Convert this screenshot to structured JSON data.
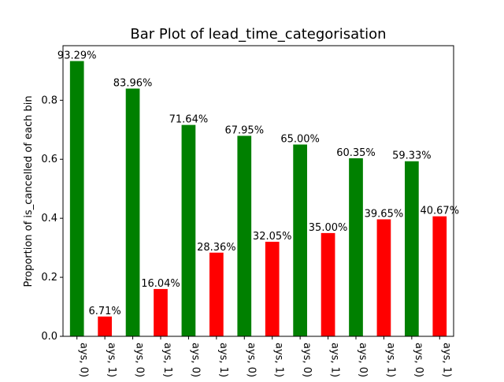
{
  "chart_data": {
    "type": "bar",
    "title": "Bar Plot of lead_time_categorisation",
    "xlabel": "",
    "ylabel": "Proportion of is_cancelled of each bin",
    "ylim": [
      0,
      0.985
    ],
    "yticks": [
      0.0,
      0.2,
      0.4,
      0.6,
      0.8
    ],
    "ytick_labels": [
      "0.0",
      "0.2",
      "0.4",
      "0.6",
      "0.8"
    ],
    "grid": false,
    "categories": [
      "ays, 0)",
      "ays, 1)",
      "ays, 0)",
      "ays, 1)",
      "ays, 0)",
      "ays, 1)",
      "ays, 0)",
      "ays, 1)",
      "ays, 0)",
      "ays, 1)",
      "ays, 0)",
      "ays, 1)",
      "ays, 0)",
      "ays, 1)"
    ],
    "values": [
      0.9329,
      0.0671,
      0.8396,
      0.1604,
      0.7164,
      0.2836,
      0.6795,
      0.3205,
      0.65,
      0.35,
      0.6035,
      0.3965,
      0.5933,
      0.4067
    ],
    "data_labels": [
      "93.29%",
      "6.71%",
      "83.96%",
      "16.04%",
      "71.64%",
      "28.36%",
      "67.95%",
      "32.05%",
      "65.00%",
      "35.00%",
      "60.35%",
      "39.65%",
      "59.33%",
      "40.67%"
    ],
    "bar_colors": [
      "#008000",
      "#ff0000",
      "#008000",
      "#ff0000",
      "#008000",
      "#ff0000",
      "#008000",
      "#ff0000",
      "#008000",
      "#ff0000",
      "#008000",
      "#ff0000",
      "#008000",
      "#ff0000"
    ]
  }
}
